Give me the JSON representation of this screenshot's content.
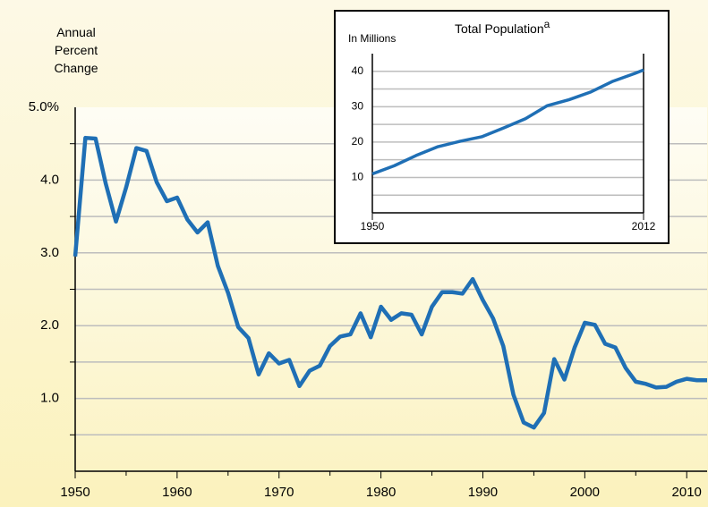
{
  "chart_data": [
    {
      "type": "line",
      "ylabel": "Annual Percent Change",
      "x": [
        1950,
        1951,
        1952,
        1953,
        1954,
        1955,
        1956,
        1957,
        1958,
        1959,
        1960,
        1961,
        1962,
        1963,
        1964,
        1965,
        1966,
        1967,
        1968,
        1969,
        1970,
        1971,
        1972,
        1973,
        1974,
        1975,
        1976,
        1977,
        1978,
        1979,
        1980,
        1981,
        1982,
        1983,
        1984,
        1985,
        1986,
        1987,
        1988,
        1989,
        1990,
        1991,
        1992,
        1993,
        1994,
        1995,
        1996,
        1997,
        1998,
        1999,
        2000,
        2001,
        2002,
        2003,
        2004,
        2005,
        2006,
        2007,
        2008,
        2009,
        2010,
        2011,
        2012
      ],
      "series": [
        {
          "color": "#1f6fb5",
          "values": [
            2.95,
            4.58,
            4.57,
            3.95,
            3.43,
            3.9,
            4.44,
            4.4,
            3.97,
            3.71,
            3.76,
            3.46,
            3.28,
            3.42,
            2.82,
            2.45,
            1.98,
            1.83,
            1.33,
            1.62,
            1.48,
            1.53,
            1.17,
            1.38,
            1.45,
            1.72,
            1.85,
            1.88,
            2.17,
            1.84,
            2.26,
            2.08,
            2.17,
            2.15,
            1.88,
            2.26,
            2.46,
            2.46,
            2.44,
            2.64,
            2.35,
            2.1,
            1.72,
            1.05,
            0.67,
            0.6,
            0.8,
            1.54,
            1.26,
            1.7,
            2.04,
            2.01,
            1.75,
            1.7,
            1.42,
            1.23,
            1.2,
            1.15,
            1.16,
            1.23,
            1.27,
            1.25,
            1.25
          ]
        }
      ],
      "xlim": [
        1950,
        2012
      ],
      "xticks": [
        1950,
        1960,
        1970,
        1980,
        1990,
        2000,
        2010
      ],
      "minor_xticks": [
        1955,
        1965,
        1975,
        1985,
        1995,
        2005
      ],
      "ylim": [
        0,
        5
      ],
      "yticks": [
        {
          "value": 1,
          "label": "1.0"
        },
        {
          "value": 2,
          "label": "2.0"
        },
        {
          "value": 3,
          "label": "3.0"
        },
        {
          "value": 4,
          "label": "4.0"
        },
        {
          "value": 5,
          "label": "5.0%"
        }
      ],
      "minor_yticks": [
        0.5,
        1.5,
        2.5,
        3.5,
        4.5
      ],
      "grid": true
    },
    {
      "type": "line",
      "title": "Total Population",
      "title_superscript": "a",
      "ylabel": "In Millions",
      "x": [
        1950,
        1955,
        1960,
        1965,
        1970,
        1975,
        1980,
        1985,
        1990,
        1995,
        2000,
        2005,
        2010,
        2012
      ],
      "series": [
        {
          "color": "#1f6fb5",
          "values": [
            11,
            13.3,
            16.2,
            18.7,
            20.2,
            21.5,
            24,
            26.6,
            30.3,
            32,
            34.2,
            37.2,
            39.4,
            40.4
          ]
        }
      ],
      "xlim": [
        1950,
        2012
      ],
      "xticks": [
        1950,
        2012
      ],
      "ylim": [
        0,
        45
      ],
      "yticks": [
        10,
        20,
        30,
        40
      ],
      "minor_yticks": [
        5,
        15,
        25,
        35
      ],
      "grid": true
    }
  ]
}
